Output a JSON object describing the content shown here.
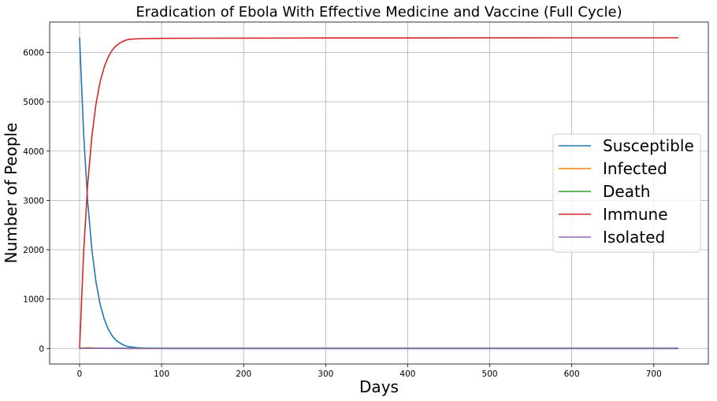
{
  "chart_data": {
    "type": "line",
    "title": "Eradication of Ebola With Effective Medicine and Vaccine (Full Cycle)",
    "xlabel": "Days",
    "ylabel": "Number of People",
    "xlim": [
      -36.5,
      766.5
    ],
    "ylim": [
      -315,
      6615
    ],
    "xticks": [
      0,
      100,
      200,
      300,
      400,
      500,
      600,
      700
    ],
    "yticks": [
      0,
      1000,
      2000,
      3000,
      4000,
      5000,
      6000
    ],
    "grid": true,
    "legend_position": "center-right",
    "x": [
      0,
      5,
      10,
      15,
      20,
      25,
      30,
      35,
      40,
      45,
      50,
      55,
      60,
      70,
      80,
      90,
      100,
      150,
      200,
      300,
      400,
      500,
      600,
      700,
      730
    ],
    "series": [
      {
        "name": "Susceptible",
        "color": "#1f77b4",
        "values": [
          6300,
          4330,
          2950,
          2000,
          1350,
          900,
          600,
          390,
          250,
          160,
          100,
          60,
          35,
          15,
          6,
          2,
          0,
          0,
          0,
          0,
          0,
          0,
          0,
          0,
          0
        ]
      },
      {
        "name": "Infected",
        "color": "#ff7f0e",
        "values": [
          5,
          12,
          15,
          12,
          8,
          5,
          3,
          2,
          1,
          1,
          0,
          0,
          0,
          0,
          0,
          0,
          0,
          0,
          0,
          0,
          0,
          0,
          0,
          0,
          0
        ]
      },
      {
        "name": "Death",
        "color": "#2ca02c",
        "values": [
          0,
          1,
          2,
          3,
          4,
          5,
          5,
          5,
          6,
          6,
          6,
          6,
          6,
          6,
          6,
          6,
          6,
          6,
          6,
          6,
          6,
          6,
          6,
          6,
          6
        ]
      },
      {
        "name": "Immune",
        "color": "#d62728",
        "values": [
          0,
          1970,
          3350,
          4300,
          4950,
          5400,
          5700,
          5910,
          6050,
          6140,
          6200,
          6240,
          6265,
          6275,
          6280,
          6283,
          6285,
          6288,
          6290,
          6292,
          6293,
          6294,
          6295,
          6295,
          6295
        ]
      },
      {
        "name": "Isolated",
        "color": "#9467bd",
        "values": [
          0,
          3,
          5,
          4,
          3,
          2,
          1,
          1,
          0,
          0,
          0,
          0,
          0,
          0,
          0,
          0,
          0,
          0,
          0,
          0,
          0,
          0,
          0,
          0,
          0
        ]
      }
    ]
  }
}
